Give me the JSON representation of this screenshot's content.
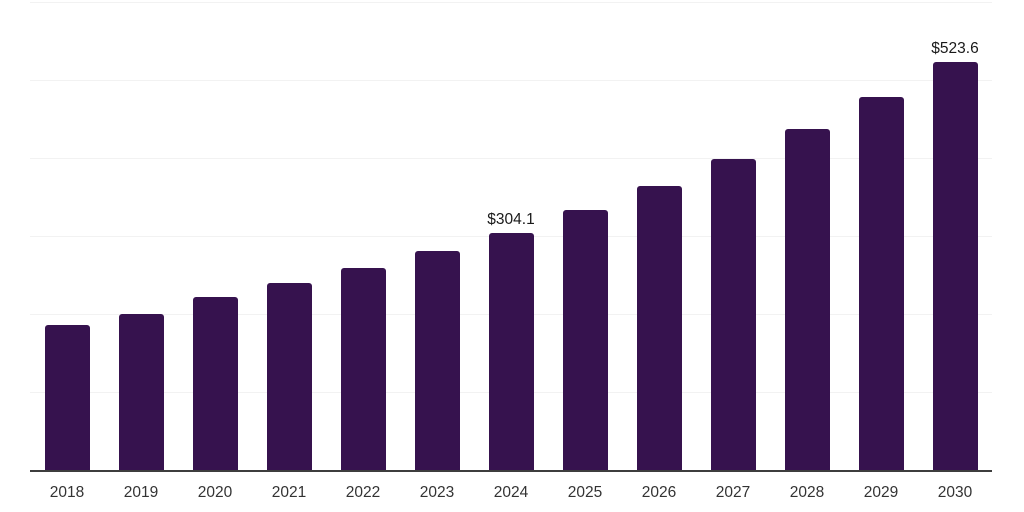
{
  "chart_data": {
    "type": "bar",
    "title": "",
    "xlabel": "",
    "ylabel": "",
    "categories": [
      "2018",
      "2019",
      "2020",
      "2021",
      "2022",
      "2023",
      "2024",
      "2025",
      "2026",
      "2027",
      "2028",
      "2029",
      "2030"
    ],
    "values": [
      186.4,
      199.9,
      221.8,
      240.4,
      259.1,
      280.9,
      304.1,
      332.9,
      364.5,
      399.0,
      436.8,
      478.3,
      523.6
    ],
    "labeled_points": [
      {
        "category": "2024",
        "label": "$304.1"
      },
      {
        "category": "2030",
        "label": "$523.6"
      }
    ],
    "value_prefix": "$",
    "ylim": [
      0,
      600
    ],
    "gridline_interval": 100,
    "grid": "horizontal-only",
    "y_axis_labels_visible": false,
    "legend": "none",
    "colors": {
      "bar": "#36124e",
      "gridline": "#f2f2f2",
      "axis_line": "#3d3d3d",
      "value_label": "#1a1a1a",
      "tick_label": "#333333",
      "background": "#ffffff"
    }
  }
}
